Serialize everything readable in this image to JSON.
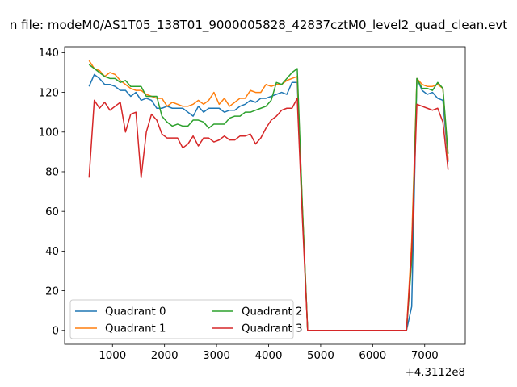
{
  "chart_data": {
    "type": "line",
    "title": "n file: modeM0/AS1T05_138T01_9000005828_42837cztM0_level2_quad_clean.evt",
    "xlabel": "",
    "ylabel": "",
    "x_offset_label": "+4.3112e8",
    "xlim": [
      80,
      7780
    ],
    "ylim": [
      -7,
      143
    ],
    "x_ticks": [
      1000,
      2000,
      3000,
      4000,
      5000,
      6000,
      7000
    ],
    "x_tick_labels": [
      "1000",
      "2000",
      "3000",
      "4000",
      "5000",
      "6000",
      "7000"
    ],
    "y_ticks": [
      0,
      20,
      40,
      60,
      80,
      100,
      120,
      140
    ],
    "y_tick_labels": [
      "0",
      "20",
      "40",
      "60",
      "80",
      "100",
      "120",
      "140"
    ],
    "grid": false,
    "legend": {
      "position": "lower-left",
      "columns": 2
    },
    "series": [
      {
        "name": "Quadrant 0",
        "color": "#1f77b4",
        "x": [
          550,
          650,
          750,
          850,
          950,
          1050,
          1150,
          1250,
          1350,
          1450,
          1550,
          1650,
          1750,
          1850,
          1950,
          2050,
          2150,
          2250,
          2350,
          2450,
          2550,
          2650,
          2750,
          2850,
          2950,
          3050,
          3150,
          3250,
          3350,
          3450,
          3550,
          3650,
          3750,
          3850,
          3950,
          4050,
          4150,
          4250,
          4350,
          4450,
          4550,
          4650,
          4750,
          4850,
          4950,
          5050,
          5150,
          5250,
          5350,
          5450,
          5550,
          5650,
          5750,
          5850,
          5950,
          6050,
          6150,
          6250,
          6350,
          6450,
          6550,
          6650,
          6750,
          6850,
          6950,
          7050,
          7150,
          7250,
          7350,
          7450
        ],
        "y": [
          123,
          129,
          127,
          124,
          124,
          123,
          121,
          121,
          118,
          120,
          116,
          117,
          116,
          112,
          112,
          113,
          112,
          112,
          112,
          110,
          108,
          113,
          110,
          112,
          112,
          112,
          110,
          111,
          111,
          113,
          114,
          116,
          115,
          117,
          117,
          118,
          119,
          120,
          119,
          125,
          125,
          60,
          0,
          0,
          0,
          0,
          0,
          0,
          0,
          0,
          0,
          0,
          0,
          0,
          0,
          0,
          0,
          0,
          0,
          0,
          0,
          0,
          12,
          127,
          121,
          119,
          120,
          117,
          116,
          85
        ]
      },
      {
        "name": "Quadrant 1",
        "color": "#ff7f0e",
        "x": [
          550,
          650,
          750,
          850,
          950,
          1050,
          1150,
          1250,
          1350,
          1450,
          1550,
          1650,
          1750,
          1850,
          1950,
          2050,
          2150,
          2250,
          2350,
          2450,
          2550,
          2650,
          2750,
          2850,
          2950,
          3050,
          3150,
          3250,
          3350,
          3450,
          3550,
          3650,
          3750,
          3850,
          3950,
          4050,
          4150,
          4250,
          4350,
          4450,
          4550,
          4650,
          4750,
          4850,
          4950,
          5050,
          5150,
          5250,
          5350,
          5450,
          5550,
          5650,
          5750,
          5850,
          5950,
          6050,
          6150,
          6250,
          6350,
          6450,
          6550,
          6650,
          6750,
          6850,
          6950,
          7050,
          7150,
          7250,
          7350,
          7450
        ],
        "y": [
          136,
          132,
          131,
          128,
          130,
          129,
          126,
          124,
          122,
          121,
          121,
          119,
          118,
          117,
          117,
          113,
          115,
          114,
          113,
          113,
          114,
          116,
          114,
          116,
          120,
          114,
          117,
          113,
          115,
          117,
          117,
          121,
          120,
          120,
          124,
          123,
          124,
          124,
          126,
          127,
          128,
          62,
          0,
          0,
          0,
          0,
          0,
          0,
          0,
          0,
          0,
          0,
          0,
          0,
          0,
          0,
          0,
          0,
          0,
          0,
          0,
          0,
          45,
          127,
          124,
          123,
          123,
          124,
          122,
          86
        ]
      },
      {
        "name": "Quadrant 2",
        "color": "#2ca02c",
        "x": [
          550,
          650,
          750,
          850,
          950,
          1050,
          1150,
          1250,
          1350,
          1450,
          1550,
          1650,
          1750,
          1850,
          1950,
          2050,
          2150,
          2250,
          2350,
          2450,
          2550,
          2650,
          2750,
          2850,
          2950,
          3050,
          3150,
          3250,
          3350,
          3450,
          3550,
          3650,
          3750,
          3850,
          3950,
          4050,
          4150,
          4250,
          4350,
          4450,
          4550,
          4650,
          4750,
          4850,
          4950,
          5050,
          5150,
          5250,
          5350,
          5450,
          5550,
          5650,
          5750,
          5850,
          5950,
          6050,
          6150,
          6250,
          6350,
          6450,
          6550,
          6650,
          6750,
          6850,
          6950,
          7050,
          7150,
          7250,
          7350,
          7450
        ],
        "y": [
          134,
          132,
          130,
          128,
          127,
          127,
          125,
          126,
          123,
          123,
          123,
          118,
          118,
          118,
          108,
          105,
          103,
          104,
          103,
          103,
          106,
          106,
          105,
          102,
          104,
          104,
          104,
          107,
          108,
          108,
          110,
          110,
          111,
          112,
          113,
          116,
          125,
          124,
          127,
          130,
          132,
          62,
          0,
          0,
          0,
          0,
          0,
          0,
          0,
          0,
          0,
          0,
          0,
          0,
          0,
          0,
          0,
          0,
          0,
          0,
          0,
          0,
          35,
          127,
          122,
          122,
          121,
          125,
          122,
          89
        ]
      },
      {
        "name": "Quadrant 3",
        "color": "#d62728",
        "x": [
          550,
          650,
          750,
          850,
          950,
          1050,
          1150,
          1250,
          1350,
          1450,
          1550,
          1650,
          1750,
          1850,
          1950,
          2050,
          2150,
          2250,
          2350,
          2450,
          2550,
          2650,
          2750,
          2850,
          2950,
          3050,
          3150,
          3250,
          3350,
          3450,
          3550,
          3650,
          3750,
          3850,
          3950,
          4050,
          4150,
          4250,
          4350,
          4450,
          4550,
          4650,
          4750,
          4850,
          4950,
          5050,
          5150,
          5250,
          5350,
          5450,
          5550,
          5650,
          5750,
          5850,
          5950,
          6050,
          6150,
          6250,
          6350,
          6450,
          6550,
          6650,
          6750,
          6850,
          6950,
          7050,
          7150,
          7250,
          7350,
          7450
        ],
        "y": [
          77,
          116,
          112,
          115,
          111,
          113,
          115,
          100,
          109,
          110,
          77,
          100,
          109,
          106,
          99,
          97,
          97,
          97,
          92,
          94,
          98,
          93,
          97,
          97,
          95,
          96,
          98,
          96,
          96,
          98,
          98,
          99,
          94,
          97,
          102,
          106,
          108,
          111,
          112,
          112,
          117,
          56,
          0,
          0,
          0,
          0,
          0,
          0,
          0,
          0,
          0,
          0,
          0,
          0,
          0,
          0,
          0,
          0,
          0,
          0,
          0,
          0,
          40,
          114,
          113,
          112,
          111,
          112,
          105,
          81
        ]
      }
    ]
  }
}
